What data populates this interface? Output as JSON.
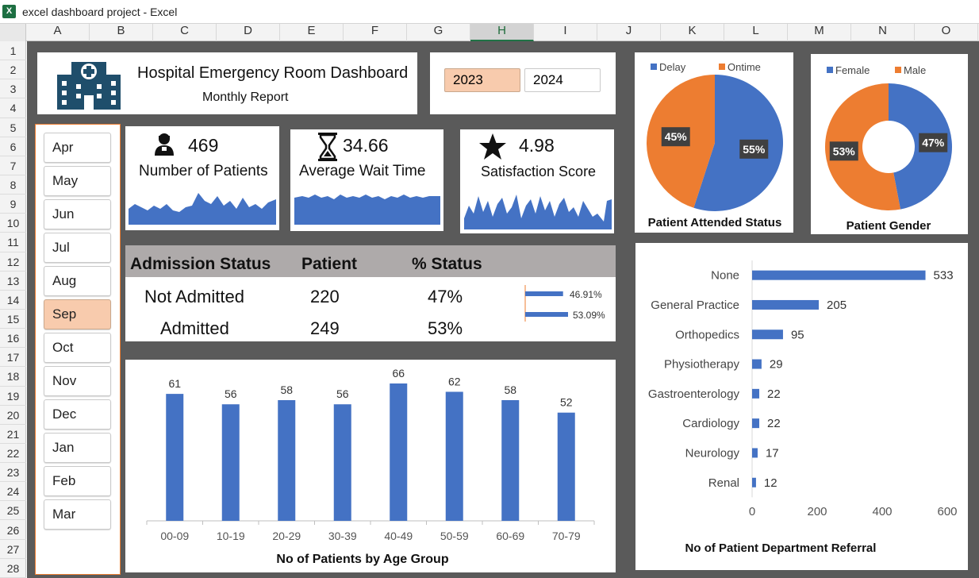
{
  "window": {
    "title": "excel dashboard project - Excel",
    "app_icon": "X"
  },
  "columns": [
    "A",
    "B",
    "C",
    "D",
    "E",
    "F",
    "G",
    "H",
    "I",
    "J",
    "K",
    "L",
    "M",
    "N",
    "O"
  ],
  "selected_column": "H",
  "rows": [
    "1",
    "2",
    "3",
    "4",
    "5",
    "6",
    "7",
    "8",
    "9",
    "10",
    "11",
    "12",
    "13",
    "14",
    "15",
    "16",
    "17",
    "18",
    "19",
    "20",
    "21",
    "22",
    "23",
    "24",
    "25",
    "26",
    "27",
    "28"
  ],
  "header": {
    "title": "Hospital Emergency Room Dashboard",
    "subtitle": "Monthly Report"
  },
  "years": {
    "options": [
      "2023",
      "2024"
    ],
    "selected": "2023"
  },
  "months": {
    "items": [
      "Apr",
      "May",
      "Jun",
      "Jul",
      "Aug",
      "Sep",
      "Oct",
      "Nov",
      "Dec",
      "Jan",
      "Feb",
      "Mar"
    ],
    "selected": "Sep"
  },
  "kpis": [
    {
      "value": "469",
      "label": "Number of Patients",
      "icon": "patient-icon"
    },
    {
      "value": "34.66",
      "label": "Average Wait Time",
      "icon": "hourglass-icon"
    },
    {
      "value": "4.98",
      "label": "Satisfaction Score",
      "icon": "star-icon"
    }
  ],
  "admission": {
    "headers": [
      "Admission Status",
      "Patient",
      "% Status"
    ],
    "rows": [
      {
        "status": "Not Admitted",
        "patients": "220",
        "pct": "47%",
        "bar_label": "46.91%",
        "bar_value": 46.91
      },
      {
        "status": "Admitted",
        "patients": "249",
        "pct": "53%",
        "bar_label": "53.09%",
        "bar_value": 53.09
      }
    ]
  },
  "colors": {
    "blue": "#4472c4",
    "orange": "#ed7d31",
    "peach": "#f8cbad",
    "sheet_bg": "#5a5a5a",
    "header_grey": "#aeaaaa"
  },
  "chart_data": [
    {
      "type": "pie",
      "title": "Patient Attended Status",
      "legend": [
        "Delay",
        "Ontime"
      ],
      "legend_position": "top",
      "values": [
        55,
        45
      ],
      "labels": [
        "55%",
        "45%"
      ]
    },
    {
      "type": "pie",
      "variant": "donut",
      "title": "Patient Gender",
      "legend": [
        "Female",
        "Male"
      ],
      "legend_position": "top",
      "values": [
        47,
        53
      ],
      "labels": [
        "47%",
        "53%"
      ]
    },
    {
      "type": "bar",
      "title": "No of Patients by Age Group",
      "categories": [
        "00-09",
        "10-19",
        "20-29",
        "30-39",
        "40-49",
        "50-59",
        "60-69",
        "70-79"
      ],
      "values": [
        61,
        56,
        58,
        56,
        66,
        62,
        58,
        52
      ],
      "ylim": [
        0,
        66
      ]
    },
    {
      "type": "bar",
      "orientation": "horizontal",
      "title": "No of Patient Department Referral",
      "categories": [
        "None",
        "General Practice",
        "Orthopedics",
        "Physiotherapy",
        "Gastroenterology",
        "Cardiology",
        "Neurology",
        "Renal"
      ],
      "values": [
        533,
        205,
        95,
        29,
        22,
        22,
        17,
        12
      ],
      "xlim": [
        0,
        600
      ],
      "xticks": [
        "0",
        "200",
        "400",
        "600"
      ]
    }
  ]
}
